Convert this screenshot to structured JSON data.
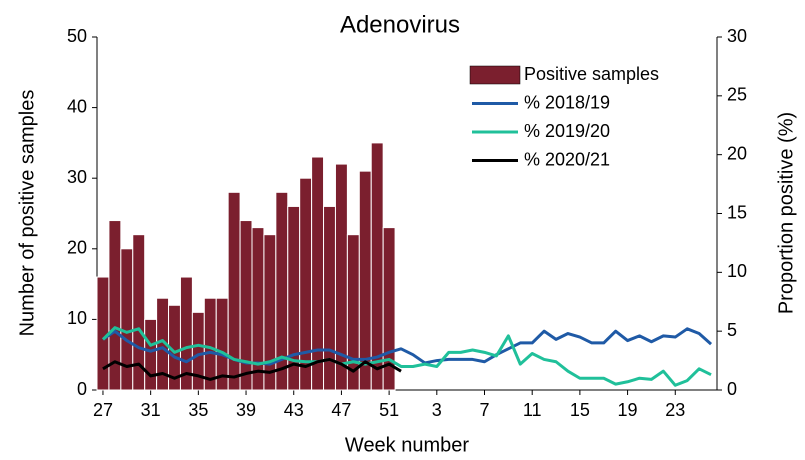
{
  "chart_data": {
    "type": "bar_line",
    "title": "Adenovirus",
    "x_label": "Week number",
    "y_label": "Number of positive samples",
    "y2_label": "Proportion positive (%)",
    "categories": [
      "27",
      null,
      null,
      null,
      "31",
      null,
      null,
      null,
      "35",
      null,
      null,
      null,
      "39",
      null,
      null,
      null,
      "43",
      null,
      null,
      null,
      "47",
      null,
      null,
      null,
      "51",
      null,
      null,
      null,
      "3",
      null,
      null,
      null,
      "7",
      null,
      null,
      null,
      "11",
      null,
      null,
      null,
      "15",
      null,
      null,
      null,
      "19",
      null,
      null,
      null,
      "23",
      null,
      null,
      null
    ],
    "series": [
      {
        "name": "Positive samples",
        "type": "bar",
        "axis": "y",
        "color": "#7b1f2e",
        "values": [
          16,
          24,
          20,
          22,
          10,
          13,
          12,
          16,
          11,
          13,
          13,
          28,
          24,
          23,
          22,
          28,
          26,
          30,
          33,
          26,
          32,
          22,
          31,
          35,
          23,
          null,
          null,
          null,
          null,
          null,
          null,
          null,
          null,
          null,
          null,
          null,
          null,
          null,
          null,
          null,
          null,
          null,
          null,
          null,
          null,
          null,
          null,
          null,
          null,
          null,
          null,
          null
        ]
      },
      {
        "name": "% 2018/19",
        "type": "line",
        "axis": "y2",
        "color": "#1f5aa6",
        "values": [
          4.3,
          5,
          4.2,
          3.6,
          3.3,
          3.6,
          2.8,
          2.4,
          3,
          3.2,
          3,
          2.6,
          2.3,
          2.3,
          2.2,
          2.6,
          3,
          3.2,
          3.4,
          3.4,
          3,
          2.6,
          2.6,
          2.8,
          3.2,
          3.5,
          3,
          2.3,
          2.5,
          2.6,
          2.6,
          2.6,
          2.4,
          3,
          3.5,
          4,
          4,
          5,
          4.3,
          4.8,
          4.5,
          4,
          4,
          5,
          4.2,
          4.6,
          4.1,
          4.6,
          4.5,
          5.2,
          4.8,
          3.9
        ]
      },
      {
        "name": "% 2019/20",
        "type": "line",
        "axis": "y2",
        "color": "#20c09a",
        "values": [
          4.3,
          5.3,
          4.9,
          5.2,
          3.8,
          4.2,
          3.2,
          3.6,
          3.8,
          3.6,
          3.2,
          2.6,
          2.4,
          2.2,
          2.4,
          2.8,
          2.5,
          2.4,
          2.4,
          2.6,
          2.2,
          2.4,
          2.2,
          2.4,
          2.6,
          2,
          2,
          2.2,
          2,
          3.2,
          3.2,
          3.4,
          3.2,
          2.9,
          4.6,
          2.2,
          3.1,
          2.6,
          2.4,
          1.6,
          1,
          1,
          1,
          0.5,
          0.7,
          1,
          0.9,
          1.6,
          0.4,
          0.8,
          1.8,
          1.3
        ]
      },
      {
        "name": "% 2020/21",
        "type": "line",
        "axis": "y2",
        "color": "#000000",
        "values": [
          1.8,
          2.4,
          2,
          2.2,
          1.2,
          1.4,
          1,
          1.4,
          1.2,
          0.9,
          1.2,
          1.1,
          1.4,
          1.6,
          1.5,
          1.8,
          2.2,
          2,
          2.4,
          2.6,
          2.2,
          1.6,
          2.4,
          1.8,
          2.2,
          1.6,
          null,
          null,
          null,
          null,
          null,
          null,
          null,
          null,
          null,
          null,
          null,
          null,
          null,
          null,
          null,
          null,
          null,
          null,
          null,
          null,
          null,
          null,
          null,
          null,
          null,
          null
        ]
      }
    ],
    "ylim": [
      0,
      50
    ],
    "yticks": [
      0,
      10,
      20,
      30,
      40,
      50
    ],
    "y2lim": [
      0,
      30
    ],
    "y2ticks": [
      0,
      5,
      10,
      15,
      20,
      25,
      30
    ],
    "legend": "upper right"
  }
}
